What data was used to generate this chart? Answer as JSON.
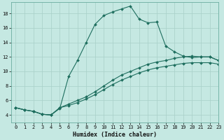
{
  "xlabel": "Humidex (Indice chaleur)",
  "xlim": [
    -0.5,
    23
  ],
  "ylim": [
    3.0,
    19.5
  ],
  "xticks": [
    0,
    1,
    2,
    3,
    4,
    5,
    6,
    7,
    8,
    9,
    10,
    11,
    12,
    13,
    14,
    15,
    16,
    17,
    18,
    19,
    20,
    21,
    22,
    23
  ],
  "yticks": [
    4,
    6,
    8,
    10,
    12,
    14,
    16,
    18
  ],
  "bg_color": "#c5e8e2",
  "line_color": "#1e6e5e",
  "grid_color": "#a8cfc8",
  "spine_color": "#6aada0",
  "line1_x": [
    0,
    1,
    2,
    3,
    4,
    5,
    6,
    7,
    8,
    9,
    10,
    11,
    12,
    13,
    14,
    15,
    16,
    17,
    18,
    19,
    20,
    21,
    22,
    23
  ],
  "line1_y": [
    5.0,
    4.7,
    4.5,
    4.1,
    4.0,
    4.9,
    9.3,
    11.5,
    14.0,
    16.5,
    17.7,
    18.2,
    18.6,
    19.0,
    17.2,
    16.7,
    16.8,
    13.5,
    12.7,
    12.1,
    11.9,
    12.0,
    12.0,
    11.5
  ],
  "line2_x": [
    0,
    1,
    2,
    3,
    4,
    5,
    6,
    7,
    8,
    9,
    10,
    11,
    12,
    13,
    14,
    15,
    16,
    17,
    18,
    19,
    20,
    21,
    22,
    23
  ],
  "line2_y": [
    5.0,
    4.7,
    4.5,
    4.1,
    4.0,
    5.0,
    5.5,
    6.0,
    6.5,
    7.2,
    8.0,
    8.8,
    9.5,
    10.0,
    10.5,
    11.0,
    11.3,
    11.5,
    11.8,
    12.0,
    12.1,
    12.0,
    12.0,
    11.5
  ],
  "line3_x": [
    0,
    1,
    2,
    3,
    4,
    5,
    6,
    7,
    8,
    9,
    10,
    11,
    12,
    13,
    14,
    15,
    16,
    17,
    18,
    19,
    20,
    21,
    22,
    23
  ],
  "line3_y": [
    5.0,
    4.7,
    4.5,
    4.1,
    4.0,
    5.0,
    5.3,
    5.7,
    6.2,
    6.8,
    7.5,
    8.2,
    8.8,
    9.3,
    9.8,
    10.2,
    10.5,
    10.7,
    10.9,
    11.1,
    11.2,
    11.2,
    11.2,
    11.0
  ],
  "tick_fontsize": 5.0,
  "xlabel_fontsize": 6.0,
  "linewidth": 0.8,
  "markersize": 2.0
}
